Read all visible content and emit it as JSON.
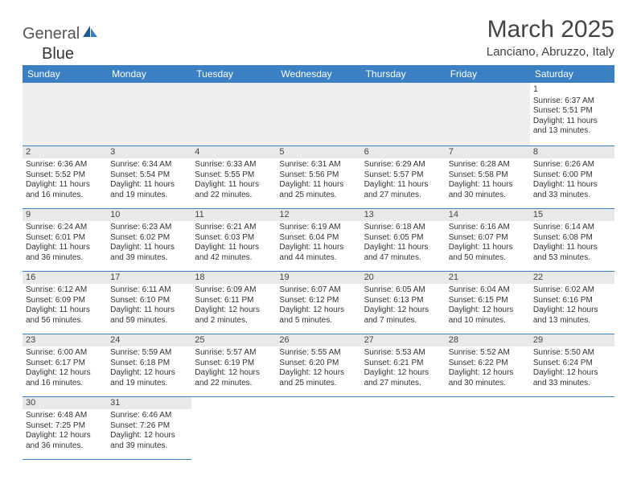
{
  "logo": {
    "part1": "General",
    "part2": "Blue"
  },
  "title": "March 2025",
  "location": "Lanciano, Abruzzo, Italy",
  "colors": {
    "header_bg": "#3a80c3",
    "header_fg": "#ffffff",
    "border": "#3a80c3",
    "daynum_bg": "#e9e9e9",
    "text": "#333333",
    "logo_blue": "#2f6fa8"
  },
  "weekdays": [
    "Sunday",
    "Monday",
    "Tuesday",
    "Wednesday",
    "Thursday",
    "Friday",
    "Saturday"
  ],
  "weeks": [
    [
      null,
      null,
      null,
      null,
      null,
      null,
      {
        "n": "1",
        "sr": "Sunrise: 6:37 AM",
        "ss": "Sunset: 5:51 PM",
        "d1": "Daylight: 11 hours",
        "d2": "and 13 minutes."
      }
    ],
    [
      {
        "n": "2",
        "sr": "Sunrise: 6:36 AM",
        "ss": "Sunset: 5:52 PM",
        "d1": "Daylight: 11 hours",
        "d2": "and 16 minutes."
      },
      {
        "n": "3",
        "sr": "Sunrise: 6:34 AM",
        "ss": "Sunset: 5:54 PM",
        "d1": "Daylight: 11 hours",
        "d2": "and 19 minutes."
      },
      {
        "n": "4",
        "sr": "Sunrise: 6:33 AM",
        "ss": "Sunset: 5:55 PM",
        "d1": "Daylight: 11 hours",
        "d2": "and 22 minutes."
      },
      {
        "n": "5",
        "sr": "Sunrise: 6:31 AM",
        "ss": "Sunset: 5:56 PM",
        "d1": "Daylight: 11 hours",
        "d2": "and 25 minutes."
      },
      {
        "n": "6",
        "sr": "Sunrise: 6:29 AM",
        "ss": "Sunset: 5:57 PM",
        "d1": "Daylight: 11 hours",
        "d2": "and 27 minutes."
      },
      {
        "n": "7",
        "sr": "Sunrise: 6:28 AM",
        "ss": "Sunset: 5:58 PM",
        "d1": "Daylight: 11 hours",
        "d2": "and 30 minutes."
      },
      {
        "n": "8",
        "sr": "Sunrise: 6:26 AM",
        "ss": "Sunset: 6:00 PM",
        "d1": "Daylight: 11 hours",
        "d2": "and 33 minutes."
      }
    ],
    [
      {
        "n": "9",
        "sr": "Sunrise: 6:24 AM",
        "ss": "Sunset: 6:01 PM",
        "d1": "Daylight: 11 hours",
        "d2": "and 36 minutes."
      },
      {
        "n": "10",
        "sr": "Sunrise: 6:23 AM",
        "ss": "Sunset: 6:02 PM",
        "d1": "Daylight: 11 hours",
        "d2": "and 39 minutes."
      },
      {
        "n": "11",
        "sr": "Sunrise: 6:21 AM",
        "ss": "Sunset: 6:03 PM",
        "d1": "Daylight: 11 hours",
        "d2": "and 42 minutes."
      },
      {
        "n": "12",
        "sr": "Sunrise: 6:19 AM",
        "ss": "Sunset: 6:04 PM",
        "d1": "Daylight: 11 hours",
        "d2": "and 44 minutes."
      },
      {
        "n": "13",
        "sr": "Sunrise: 6:18 AM",
        "ss": "Sunset: 6:05 PM",
        "d1": "Daylight: 11 hours",
        "d2": "and 47 minutes."
      },
      {
        "n": "14",
        "sr": "Sunrise: 6:16 AM",
        "ss": "Sunset: 6:07 PM",
        "d1": "Daylight: 11 hours",
        "d2": "and 50 minutes."
      },
      {
        "n": "15",
        "sr": "Sunrise: 6:14 AM",
        "ss": "Sunset: 6:08 PM",
        "d1": "Daylight: 11 hours",
        "d2": "and 53 minutes."
      }
    ],
    [
      {
        "n": "16",
        "sr": "Sunrise: 6:12 AM",
        "ss": "Sunset: 6:09 PM",
        "d1": "Daylight: 11 hours",
        "d2": "and 56 minutes."
      },
      {
        "n": "17",
        "sr": "Sunrise: 6:11 AM",
        "ss": "Sunset: 6:10 PM",
        "d1": "Daylight: 11 hours",
        "d2": "and 59 minutes."
      },
      {
        "n": "18",
        "sr": "Sunrise: 6:09 AM",
        "ss": "Sunset: 6:11 PM",
        "d1": "Daylight: 12 hours",
        "d2": "and 2 minutes."
      },
      {
        "n": "19",
        "sr": "Sunrise: 6:07 AM",
        "ss": "Sunset: 6:12 PM",
        "d1": "Daylight: 12 hours",
        "d2": "and 5 minutes."
      },
      {
        "n": "20",
        "sr": "Sunrise: 6:05 AM",
        "ss": "Sunset: 6:13 PM",
        "d1": "Daylight: 12 hours",
        "d2": "and 7 minutes."
      },
      {
        "n": "21",
        "sr": "Sunrise: 6:04 AM",
        "ss": "Sunset: 6:15 PM",
        "d1": "Daylight: 12 hours",
        "d2": "and 10 minutes."
      },
      {
        "n": "22",
        "sr": "Sunrise: 6:02 AM",
        "ss": "Sunset: 6:16 PM",
        "d1": "Daylight: 12 hours",
        "d2": "and 13 minutes."
      }
    ],
    [
      {
        "n": "23",
        "sr": "Sunrise: 6:00 AM",
        "ss": "Sunset: 6:17 PM",
        "d1": "Daylight: 12 hours",
        "d2": "and 16 minutes."
      },
      {
        "n": "24",
        "sr": "Sunrise: 5:59 AM",
        "ss": "Sunset: 6:18 PM",
        "d1": "Daylight: 12 hours",
        "d2": "and 19 minutes."
      },
      {
        "n": "25",
        "sr": "Sunrise: 5:57 AM",
        "ss": "Sunset: 6:19 PM",
        "d1": "Daylight: 12 hours",
        "d2": "and 22 minutes."
      },
      {
        "n": "26",
        "sr": "Sunrise: 5:55 AM",
        "ss": "Sunset: 6:20 PM",
        "d1": "Daylight: 12 hours",
        "d2": "and 25 minutes."
      },
      {
        "n": "27",
        "sr": "Sunrise: 5:53 AM",
        "ss": "Sunset: 6:21 PM",
        "d1": "Daylight: 12 hours",
        "d2": "and 27 minutes."
      },
      {
        "n": "28",
        "sr": "Sunrise: 5:52 AM",
        "ss": "Sunset: 6:22 PM",
        "d1": "Daylight: 12 hours",
        "d2": "and 30 minutes."
      },
      {
        "n": "29",
        "sr": "Sunrise: 5:50 AM",
        "ss": "Sunset: 6:24 PM",
        "d1": "Daylight: 12 hours",
        "d2": "and 33 minutes."
      }
    ],
    [
      {
        "n": "30",
        "sr": "Sunrise: 6:48 AM",
        "ss": "Sunset: 7:25 PM",
        "d1": "Daylight: 12 hours",
        "d2": "and 36 minutes."
      },
      {
        "n": "31",
        "sr": "Sunrise: 6:46 AM",
        "ss": "Sunset: 7:26 PM",
        "d1": "Daylight: 12 hours",
        "d2": "and 39 minutes."
      },
      null,
      null,
      null,
      null,
      null
    ]
  ]
}
